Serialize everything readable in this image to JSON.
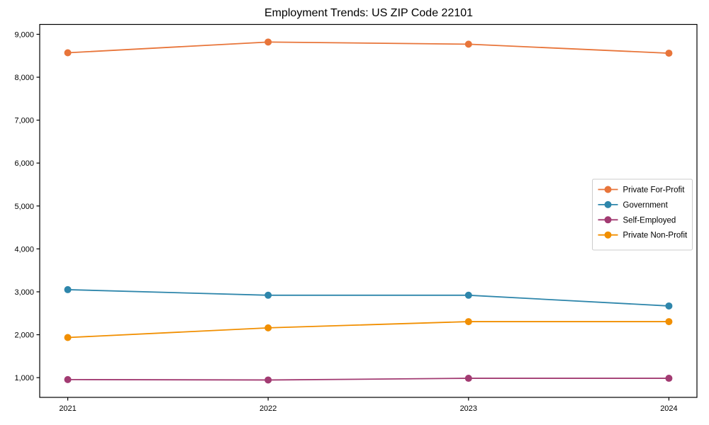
{
  "chart_data": {
    "type": "line",
    "title": "Employment Trends: US ZIP Code 22101",
    "xlabel": "",
    "ylabel": "",
    "x": [
      2021,
      2022,
      2023,
      2024
    ],
    "x_tick_labels": [
      "2021",
      "2022",
      "2023",
      "2024"
    ],
    "series": [
      {
        "name": "Private For-Profit",
        "color": "#E8753A",
        "values": [
          8570,
          8820,
          8770,
          8560
        ]
      },
      {
        "name": "Government",
        "color": "#2E86AB",
        "values": [
          3050,
          2920,
          2920,
          2670
        ]
      },
      {
        "name": "Self-Employed",
        "color": "#A23B72",
        "values": [
          955,
          945,
          985,
          985
        ]
      },
      {
        "name": "Private Non-Profit",
        "color": "#F18F01",
        "values": [
          1935,
          2160,
          2305,
          2305
        ]
      }
    ],
    "yticks": [
      1000,
      2000,
      3000,
      4000,
      5000,
      6000,
      7000,
      8000,
      9000
    ],
    "ytick_labels": [
      "1,000",
      "2,000",
      "3,000",
      "4,000",
      "5,000",
      "6,000",
      "7,000",
      "8,000",
      "9,000"
    ],
    "ylim": [
      540,
      9230
    ],
    "xlim": [
      2020.86,
      2024.14
    ],
    "grid": false,
    "legend_position": "center-right",
    "marker": "circle",
    "axis_color": "#000000",
    "tick_label_color": "#000000",
    "legend_border_color": "#cccccc",
    "background_color": "#ffffff"
  }
}
